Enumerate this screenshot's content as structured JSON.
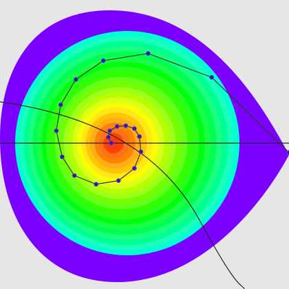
{
  "chart_data": {
    "type": "contour-path",
    "x": [
      2.0,
      0.93,
      0.05,
      -0.57,
      -0.95,
      -1.16,
      -1.22,
      -1.14,
      -0.97,
      -0.67,
      -0.36,
      -0.14,
      -0.05,
      -0.07,
      -0.14,
      -0.26,
      -0.38,
      -0.48,
      -0.5,
      -0.46
    ],
    "y": [
      -0.11,
      0.93,
      1.26,
      1.16,
      0.9,
      0.55,
      0.19,
      -0.17,
      -0.43,
      -0.55,
      -0.5,
      -0.33,
      -0.1,
      0.11,
      0.22,
      0.26,
      0.25,
      0.19,
      0.1,
      0.02
    ],
    "xlim": [
      -2,
      2
    ],
    "ylim": [
      -2,
      2
    ],
    "color": "#3a1a8a"
  }
}
